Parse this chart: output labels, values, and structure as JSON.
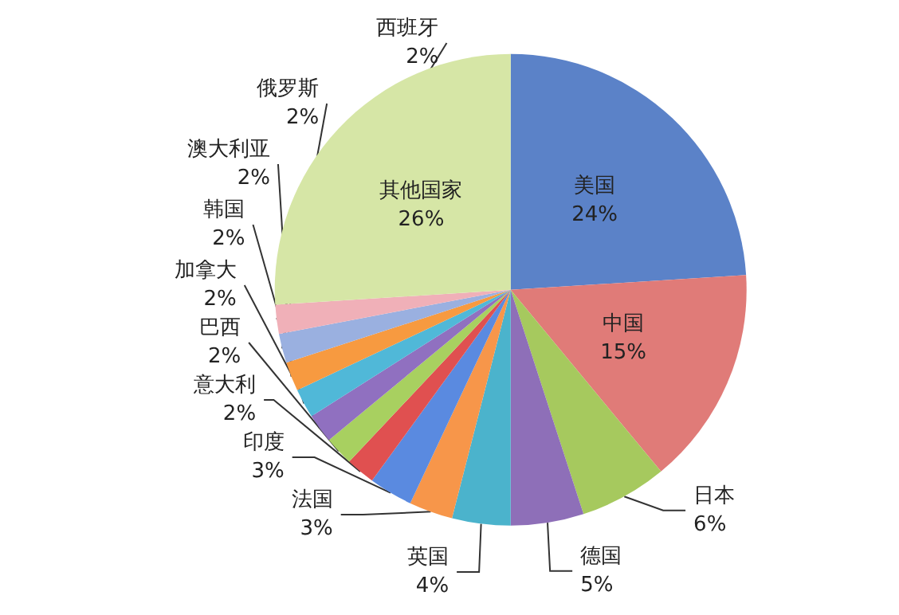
{
  "chart_data": {
    "type": "pie",
    "categories": [
      "美国",
      "中国",
      "日本",
      "德国",
      "英国",
      "法国",
      "印度",
      "意大利",
      "巴西",
      "加拿大",
      "韩国",
      "澳大利亚",
      "俄罗斯",
      "西班牙",
      "其他国家"
    ],
    "values": [
      24,
      15,
      6,
      5,
      4,
      3,
      3,
      2,
      2,
      2,
      2,
      2,
      2,
      2,
      26
    ],
    "colors": [
      "#5b82c8",
      "#e07b78",
      "#a6c95e",
      "#8e6fb8",
      "#4bb3cc",
      "#f7964a",
      "#5a8ae0",
      "#e05050",
      "#a8d060",
      "#9070c0",
      "#50b8d8",
      "#f79a40",
      "#9ab0e0",
      "#f0b0b8",
      "#d6e6a6"
    ],
    "value_labels": [
      "24%",
      "15%",
      "6%",
      "5%",
      "4%",
      "3%",
      "3%",
      "2%",
      "2%",
      "2%",
      "2%",
      "2%",
      "2%",
      "2%",
      "26%"
    ],
    "legend": false
  }
}
